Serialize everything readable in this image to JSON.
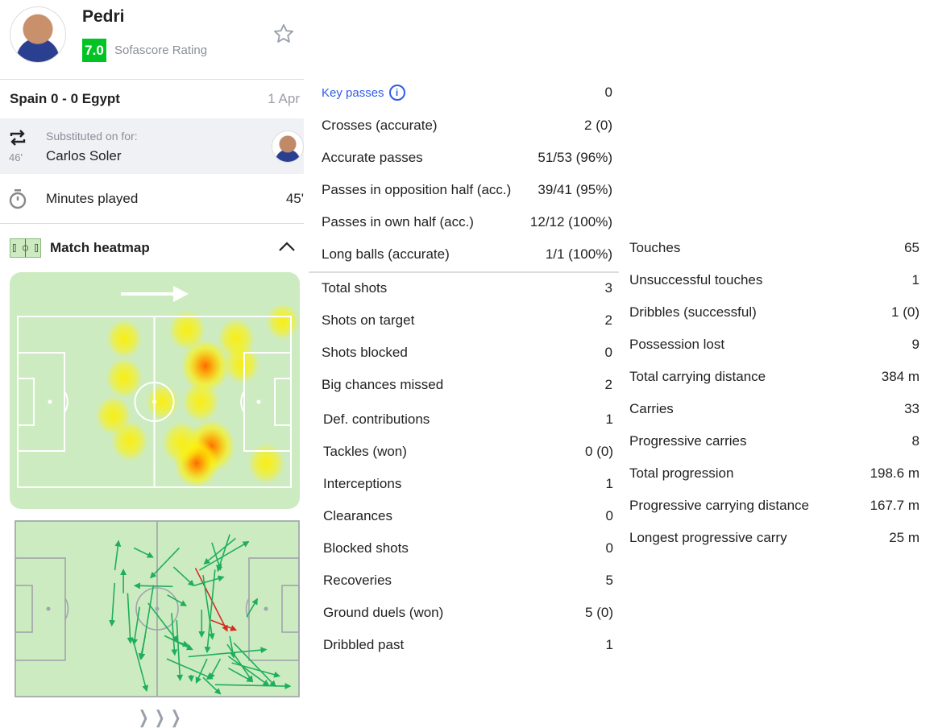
{
  "player": {
    "name": "Pedri",
    "rating": "7.0",
    "rating_label": "Sofascore Rating",
    "rating_color": "#00c424"
  },
  "match": {
    "title": "Spain 0 - 0 Egypt",
    "date": "1 Apr"
  },
  "substitution": {
    "label": "Substituted on for:",
    "player": "Carlos Soler",
    "minute": "46'"
  },
  "minutes": {
    "label": "Minutes played",
    "value": "45'"
  },
  "heatmap": {
    "title": "Match heatmap",
    "points": [
      {
        "x": 68.7,
        "y": 29,
        "i": 1.0
      },
      {
        "x": 70.8,
        "y": 76,
        "i": 1.0
      },
      {
        "x": 65.5,
        "y": 86,
        "i": 0.85
      },
      {
        "x": 39,
        "y": 13,
        "i": 0.5
      },
      {
        "x": 39,
        "y": 36,
        "i": 0.55
      },
      {
        "x": 35,
        "y": 58,
        "i": 0.5
      },
      {
        "x": 41,
        "y": 73,
        "i": 0.55
      },
      {
        "x": 62,
        "y": 8,
        "i": 0.55
      },
      {
        "x": 80,
        "y": 13,
        "i": 0.55
      },
      {
        "x": 67,
        "y": 50,
        "i": 0.55
      },
      {
        "x": 60,
        "y": 74,
        "i": 0.65
      },
      {
        "x": 91,
        "y": 86,
        "i": 0.55
      },
      {
        "x": 97,
        "y": 3,
        "i": 0.4
      },
      {
        "x": 53,
        "y": 50,
        "i": 0.4
      },
      {
        "x": 82,
        "y": 28,
        "i": 0.5
      }
    ]
  },
  "passmap": {
    "line_color": "#a0a4ad",
    "success_color": "#1fae5b",
    "fail_color": "#d62d20",
    "passes": [
      [
        35.1,
        28.0,
        36.4,
        11.4,
        1
      ],
      [
        41.8,
        15.3,
        48.5,
        20.6,
        1
      ],
      [
        57.8,
        15.3,
        47.7,
        32.3,
        1
      ],
      [
        38.1,
        41.1,
        38.1,
        27.7,
        1
      ],
      [
        35.0,
        35.3,
        34.0,
        59.5,
        1
      ],
      [
        55.5,
        37.3,
        42.1,
        36.8,
        1
      ],
      [
        39.6,
        41.1,
        40.6,
        69.4,
        1
      ],
      [
        43.8,
        48.9,
        41.8,
        70.2,
        1
      ],
      [
        48.7,
        36.5,
        44.4,
        78.5,
        1
      ],
      [
        41.8,
        69.4,
        46.3,
        96.7,
        1
      ],
      [
        46.8,
        46.7,
        57.2,
        68.6,
        1
      ],
      [
        53.6,
        42.1,
        60.2,
        48.2,
        1
      ],
      [
        55.8,
        26.2,
        62.9,
        36.8,
        1
      ],
      [
        55.1,
        52.4,
        56.2,
        76.2,
        1
      ],
      [
        56.9,
        56.5,
        58.1,
        90.6,
        1
      ],
      [
        52.6,
        65.3,
        62.4,
        73.2,
        1
      ],
      [
        53.4,
        78.5,
        69.5,
        89.8,
        1
      ],
      [
        61.0,
        77.3,
        88.4,
        73.2,
        1
      ],
      [
        70.4,
        93.2,
        96.9,
        94.1,
        1
      ],
      [
        66.2,
        89.1,
        72.3,
        98.5,
        1
      ],
      [
        63.5,
        26.8,
        74.7,
        62.6,
        0
      ],
      [
        69.0,
        56.5,
        77.8,
        62.1,
        0
      ],
      [
        64.9,
        28.0,
        82.2,
        11.8,
        1
      ],
      [
        77.7,
        9.8,
        66.6,
        24.4,
        1
      ],
      [
        75.6,
        7.6,
        71.4,
        28.5,
        1
      ],
      [
        69.3,
        12.3,
        72.3,
        27.7,
        1
      ],
      [
        62.9,
        36.8,
        73.4,
        31.9,
        1
      ],
      [
        65.7,
        50.5,
        65.7,
        65.9,
        1
      ],
      [
        70.4,
        27.7,
        67.6,
        74.7,
        1
      ],
      [
        66.2,
        30.8,
        69.5,
        67.1,
        1
      ],
      [
        74.7,
        70.2,
        83.6,
        91.4,
        1
      ],
      [
        77.0,
        69.4,
        91.7,
        94.1,
        1
      ],
      [
        75.1,
        83.8,
        83.6,
        91.4,
        1
      ],
      [
        76.3,
        80.8,
        93.1,
        88.3,
        1
      ],
      [
        81.6,
        54.5,
        85.3,
        44.4,
        1
      ],
      [
        75.6,
        65.6,
        77.0,
        77.7,
        1
      ],
      [
        67.6,
        78.5,
        63.8,
        92.1,
        1
      ],
      [
        72.3,
        78.5,
        68.5,
        89.8,
        1
      ],
      [
        61.9,
        87.6,
        62.1,
        91.1,
        1
      ],
      [
        45.8,
        65.6,
        44.1,
        78.5,
        1
      ],
      [
        56.7,
        68.6,
        61.0,
        70.9,
        1
      ],
      [
        75.1,
        77.0,
        89.3,
        93.6,
        1
      ]
    ]
  },
  "key_passes": {
    "label": "Key passes",
    "value": "0"
  },
  "passing": [
    {
      "label": "Crosses (accurate)",
      "value": "2 (0)"
    },
    {
      "label": "Accurate passes",
      "value": "51/53 (96%)"
    },
    {
      "label": "Passes in opposition half (acc.)",
      "value": "39/41 (95%)"
    },
    {
      "label": "Passes in own half (acc.)",
      "value": "12/12 (100%)"
    },
    {
      "label": "Long balls (accurate)",
      "value": "1/1 (100%)"
    }
  ],
  "shooting": [
    {
      "label": "Total shots",
      "value": "3"
    },
    {
      "label": "Shots on target",
      "value": "2"
    },
    {
      "label": "Shots blocked",
      "value": "0"
    },
    {
      "label": "Big chances missed",
      "value": "2"
    }
  ],
  "defending": [
    {
      "label": "Def. contributions",
      "value": "1"
    },
    {
      "label": "Tackles (won)",
      "value": "0 (0)"
    },
    {
      "label": "Interceptions",
      "value": "1"
    },
    {
      "label": "Clearances",
      "value": "0"
    },
    {
      "label": "Blocked shots",
      "value": "0"
    },
    {
      "label": "Recoveries",
      "value": "5"
    },
    {
      "label": "Ground duels (won)",
      "value": "5 (0)"
    },
    {
      "label": "Dribbled past",
      "value": "1"
    }
  ],
  "possession": [
    {
      "label": "Touches",
      "value": "65"
    },
    {
      "label": "Unsuccessful touches",
      "value": "1"
    },
    {
      "label": "Dribbles (successful)",
      "value": "1 (0)"
    },
    {
      "label": "Possession lost",
      "value": "9"
    },
    {
      "label": "Total carrying distance",
      "value": "384 m"
    },
    {
      "label": "Carries",
      "value": "33"
    },
    {
      "label": "Progressive carries",
      "value": "8"
    },
    {
      "label": "Total progression",
      "value": "198.6 m"
    },
    {
      "label": "Progressive carrying distance",
      "value": "167.7 m"
    },
    {
      "label": "Longest progressive carry",
      "value": "25 m"
    }
  ]
}
